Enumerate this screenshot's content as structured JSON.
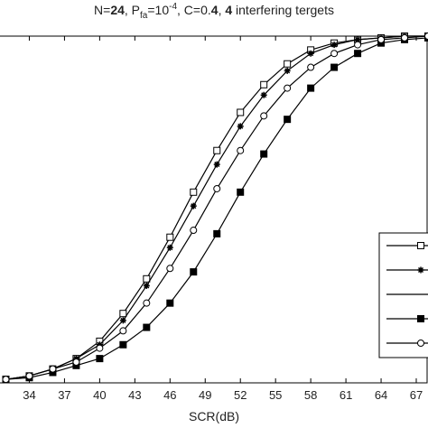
{
  "chart_data": {
    "type": "line",
    "title": [
      "N=",
      "24",
      ", P",
      "fa",
      "=10",
      "-4",
      ", C=0.",
      "4",
      ", ",
      "4",
      " interfering tergets"
    ],
    "x_label": "SCR(dB)",
    "x": [
      32,
      34,
      36,
      38,
      40,
      42,
      44,
      46,
      48,
      50,
      52,
      54,
      56,
      58,
      60,
      62,
      64,
      66,
      68
    ],
    "xlim": [
      31.5,
      68
    ],
    "xticks": [
      34,
      37,
      40,
      43,
      46,
      49,
      52,
      55,
      58,
      61,
      64,
      67
    ],
    "ylim": [
      0,
      1
    ],
    "series": [
      {
        "color": "#000",
        "marker": "open-square",
        "values": [
          0.01,
          0.02,
          0.04,
          0.07,
          0.12,
          0.2,
          0.3,
          0.42,
          0.55,
          0.67,
          0.78,
          0.86,
          0.92,
          0.96,
          0.98,
          0.99,
          0.995,
          1,
          1
        ]
      },
      {
        "color": "#000",
        "marker": "star",
        "values": [
          0.01,
          0.02,
          0.04,
          0.07,
          0.11,
          0.18,
          0.28,
          0.39,
          0.51,
          0.63,
          0.74,
          0.83,
          0.9,
          0.95,
          0.975,
          0.99,
          0.995,
          1,
          1
        ]
      },
      {
        "color": "#000",
        "marker": "filled-square",
        "values": [
          0.01,
          0.015,
          0.03,
          0.05,
          0.07,
          0.11,
          0.16,
          0.23,
          0.32,
          0.43,
          0.55,
          0.66,
          0.76,
          0.85,
          0.91,
          0.95,
          0.98,
          0.99,
          0.995
        ]
      },
      {
        "color": "#000",
        "marker": "open-circle",
        "values": [
          0.01,
          0.02,
          0.04,
          0.06,
          0.1,
          0.15,
          0.23,
          0.33,
          0.44,
          0.56,
          0.67,
          0.77,
          0.85,
          0.91,
          0.95,
          0.975,
          0.99,
          0.995,
          1
        ]
      }
    ]
  }
}
